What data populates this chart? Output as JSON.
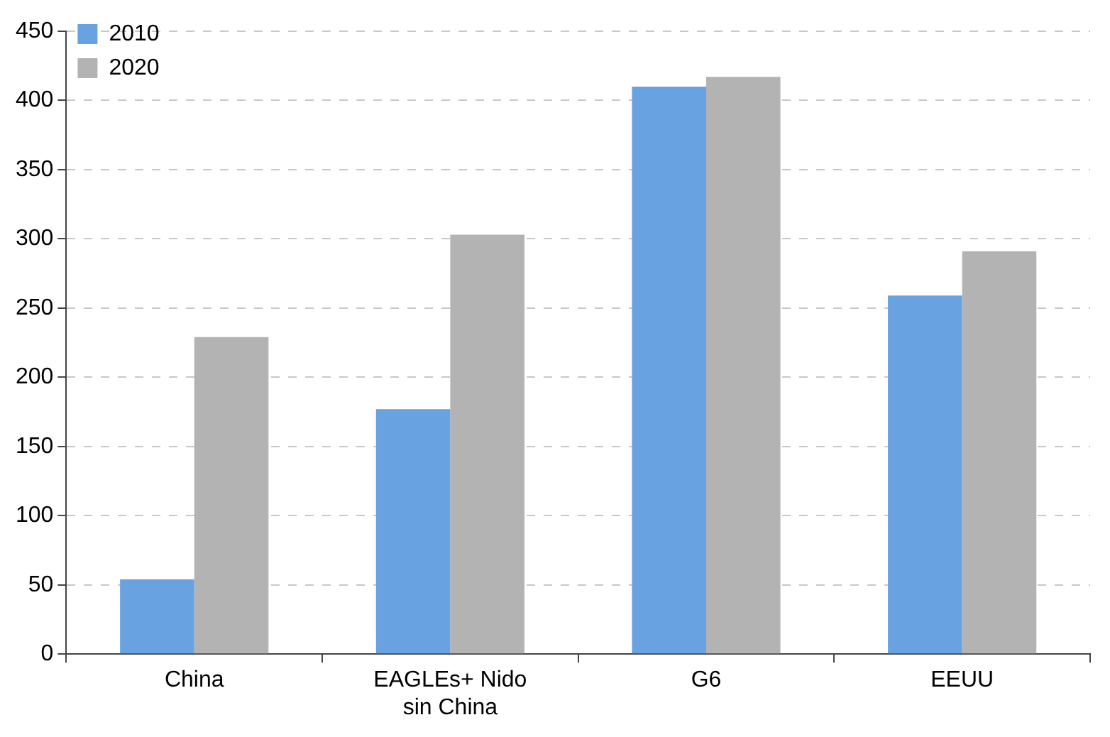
{
  "chart_data": {
    "type": "bar",
    "categories": [
      "China",
      "EAGLEs+ Nido\nsin China",
      "G6",
      "EEUU"
    ],
    "series": [
      {
        "name": "2010",
        "color": "#68a2e0",
        "values": [
          54,
          177,
          410,
          259
        ]
      },
      {
        "name": "2020",
        "color": "#b3b3b3",
        "values": [
          229,
          303,
          417,
          291
        ]
      }
    ],
    "ylim": [
      0,
      450
    ],
    "yticks": [
      0,
      50,
      100,
      150,
      200,
      250,
      300,
      350,
      400,
      450
    ],
    "grid": "y",
    "legend": "top left"
  }
}
